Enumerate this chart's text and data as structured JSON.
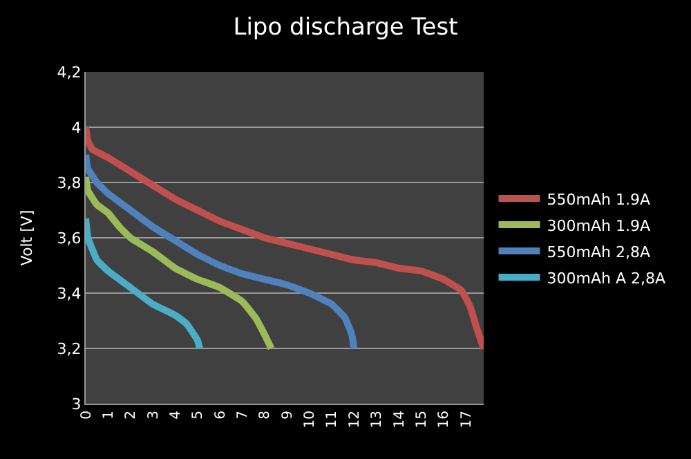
{
  "chart_data": {
    "type": "line",
    "title": "Lipo discharge Test",
    "ylabel": "Volt [V]",
    "xlim": [
      0,
      17.8
    ],
    "xticks": [
      0,
      1,
      2,
      3,
      4,
      5,
      6,
      7,
      8,
      9,
      10,
      11,
      12,
      13,
      14,
      15,
      16,
      17
    ],
    "ylim": [
      3,
      4.2
    ],
    "yticks": [
      {
        "value": 3,
        "label": "3"
      },
      {
        "value": 3.2,
        "label": "3,2"
      },
      {
        "value": 3.4,
        "label": "3,4"
      },
      {
        "value": 3.6,
        "label": "3,6"
      },
      {
        "value": 3.8,
        "label": "3,8"
      },
      {
        "value": 4,
        "label": "4"
      },
      {
        "value": 4.2,
        "label": "4,2"
      }
    ],
    "grid": "y",
    "legend": "right",
    "marker": "none",
    "line_style": "solid",
    "series": [
      {
        "name": "550mAh 1.9A",
        "color": "#c0504d",
        "x": [
          0,
          0.1,
          0.3,
          1,
          2,
          3,
          4,
          5,
          6,
          7,
          8,
          9,
          10,
          11,
          12,
          13,
          14,
          15,
          16,
          16.8,
          17.2,
          17.5,
          17.8
        ],
        "values": [
          4.0,
          3.95,
          3.92,
          3.89,
          3.84,
          3.79,
          3.74,
          3.7,
          3.66,
          3.63,
          3.6,
          3.58,
          3.56,
          3.54,
          3.52,
          3.51,
          3.49,
          3.48,
          3.45,
          3.41,
          3.35,
          3.27,
          3.2
        ]
      },
      {
        "name": "300mAh 1.9A",
        "color": "#9bbb59",
        "x": [
          0,
          0.1,
          0.5,
          1,
          1.5,
          2,
          3,
          4,
          5,
          6,
          7,
          7.6,
          8.0,
          8.3
        ],
        "values": [
          3.82,
          3.77,
          3.72,
          3.69,
          3.64,
          3.6,
          3.55,
          3.49,
          3.45,
          3.42,
          3.37,
          3.31,
          3.25,
          3.2
        ]
      },
      {
        "name": "550mAh 2,8A",
        "color": "#4f81bd",
        "x": [
          0,
          0.1,
          0.5,
          1,
          2,
          3,
          4,
          5,
          6,
          7,
          8,
          9,
          10,
          11,
          11.6,
          11.9,
          12.0
        ],
        "values": [
          3.9,
          3.85,
          3.8,
          3.76,
          3.7,
          3.64,
          3.59,
          3.54,
          3.5,
          3.47,
          3.45,
          3.43,
          3.4,
          3.36,
          3.31,
          3.25,
          3.2
        ]
      },
      {
        "name": "300mAh A 2,8A",
        "color": "#4bacc6",
        "x": [
          0,
          0.1,
          0.5,
          1,
          2,
          3,
          4,
          4.5,
          5,
          5.1
        ],
        "values": [
          3.67,
          3.6,
          3.52,
          3.48,
          3.42,
          3.36,
          3.32,
          3.29,
          3.23,
          3.2
        ]
      }
    ]
  }
}
